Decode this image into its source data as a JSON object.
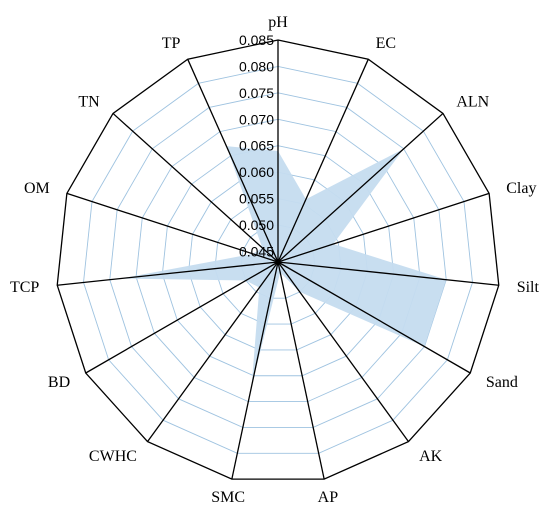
{
  "chart_data": {
    "type": "radar",
    "title": "",
    "axes": [
      "pH",
      "EC",
      "ALN",
      "Clay",
      "Silt",
      "Sand",
      "AK",
      "AP",
      "SMC",
      "CWHC",
      "BD",
      "TCP",
      "OM",
      "TN",
      "TP"
    ],
    "ticks": [
      0.045,
      0.05,
      0.055,
      0.06,
      0.065,
      0.07,
      0.075,
      0.08,
      0.085
    ],
    "tick_labels": [
      "0.045",
      "0.050",
      "0.055",
      "0.060",
      "0.065",
      "0.070",
      "0.075",
      "0.080",
      "0.085"
    ],
    "rlim": [
      0.043,
      0.085
    ],
    "grid": true,
    "series": [
      {
        "values": [
          0.064,
          0.056,
          0.075,
          0.054,
          0.075,
          0.075,
          0.05,
          0.045,
          0.067,
          0.049,
          0.05,
          0.073,
          0.048,
          0.047,
          0.067
        ]
      }
    ],
    "colors": {
      "fill": "#c5dcef",
      "grid": "#9fc3e0",
      "spoke": "#000000",
      "outline": "#000000"
    }
  }
}
